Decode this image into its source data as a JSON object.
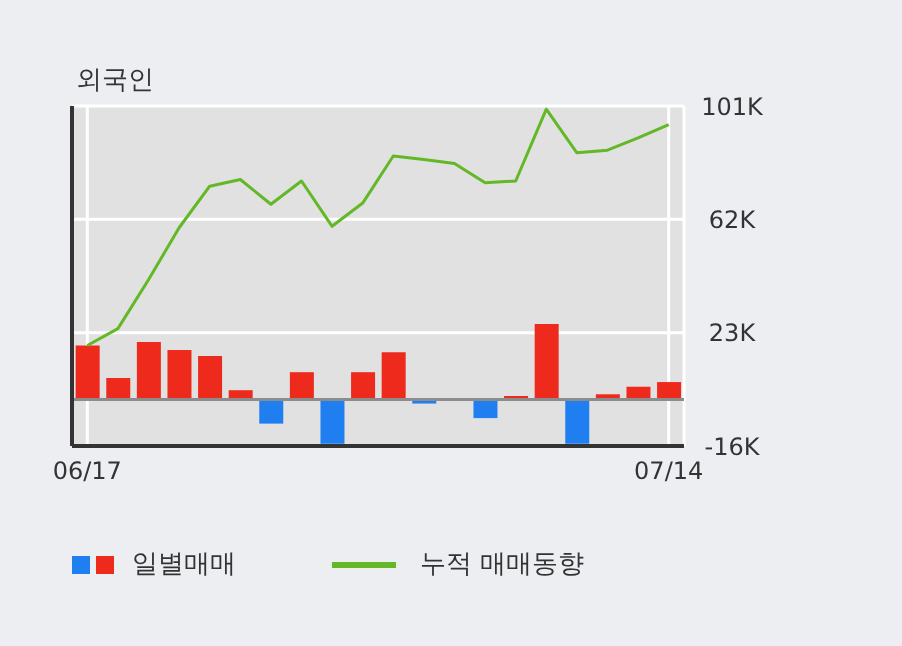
{
  "chart_data": {
    "type": "bar",
    "title": "외국인",
    "categories": [
      "06/17",
      null,
      null,
      null,
      null,
      null,
      null,
      null,
      null,
      null,
      null,
      null,
      null,
      null,
      null,
      null,
      null,
      null,
      null,
      "07/14"
    ],
    "series": [
      {
        "name": "일별매매",
        "colors": [
          "#ee2a1c",
          "#ee2a1c",
          "#ee2a1c",
          "#ee2a1c",
          "#ee2a1c",
          "#ee2a1c",
          "#1f7ef0",
          "#ee2a1c",
          "#1f7ef0",
          "#ee2a1c",
          "#ee2a1c",
          "#1f7ef0",
          null,
          "#1f7ef0",
          "#ee2a1c",
          "#ee2a1c",
          "#1f7ef0",
          "#ee2a1c",
          "#ee2a1c",
          "#ee2a1c"
        ],
        "values": [
          18600,
          7400,
          19800,
          17000,
          15000,
          3200,
          -8300,
          9400,
          -15200,
          9400,
          16300,
          -1400,
          null,
          -6400,
          1200,
          26000,
          -15200,
          1800,
          4400,
          6000
        ]
      },
      {
        "name": "누적 매매동향",
        "type": "line",
        "color": "#62b826",
        "values": [
          18600,
          24400,
          41200,
          59100,
          73400,
          75700,
          67200,
          75200,
          59600,
          67600,
          83800,
          82600,
          81200,
          74600,
          75200,
          99900,
          84900,
          85800,
          90000,
          94600
        ]
      }
    ],
    "ylim": [
      -16000,
      101000
    ],
    "yticks": [
      {
        "value": 101000,
        "label": "101K"
      },
      {
        "value": 62000,
        "label": "62K"
      },
      {
        "value": 23000,
        "label": "23K"
      },
      {
        "value": -16000,
        "label": "-16K"
      }
    ],
    "ref_lines": [
      {
        "axis": "y",
        "value": 0,
        "color": "#8c8c8c"
      }
    ],
    "grid": true,
    "legend": "bottom",
    "marker": "none"
  }
}
